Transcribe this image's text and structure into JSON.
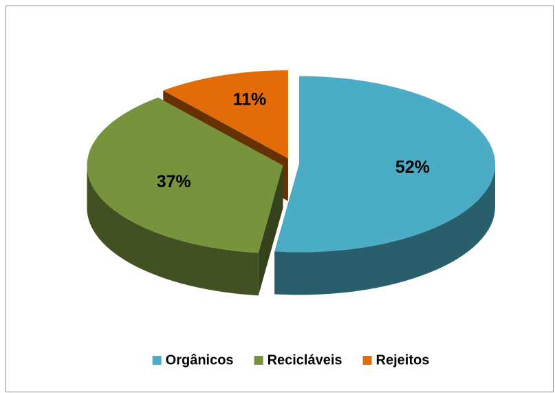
{
  "chart_data": {
    "type": "pie",
    "categories": [
      "Orgânicos",
      "Recicláveis",
      "Rejeitos"
    ],
    "values": [
      52,
      37,
      11
    ],
    "value_labels": [
      "52%",
      "37%",
      "11%"
    ],
    "colors": [
      "#4bacc6",
      "#77933c",
      "#e36c09"
    ],
    "legend": "bottom"
  }
}
